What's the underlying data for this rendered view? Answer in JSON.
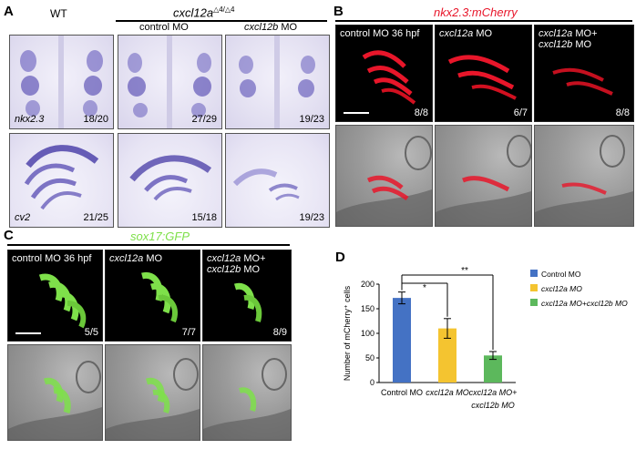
{
  "panelA": {
    "label": "A",
    "wt": "WT",
    "genotype": "cxcl12a",
    "genotype_sup": "△4/△4",
    "col_control": "control MO",
    "col_cxcl12b": "cxcl12b",
    "col_cxcl12b_suffix": " MO",
    "row1_gene": "nkx2.3",
    "row1_counts": [
      "18/20",
      "27/29",
      "19/23"
    ],
    "row2_gene": "cv2",
    "row2_counts": [
      "21/25",
      "15/18",
      "19/23"
    ]
  },
  "panelB": {
    "label": "B",
    "title": "nkx2.3:mCherry",
    "p1": "control MO  36 hpf",
    "p2": "cxcl12a",
    "p2_suffix": " MO",
    "p3a": "cxcl12a",
    "p3a_suffix": " MO+",
    "p3b": "cxcl12b",
    "p3b_suffix": " MO",
    "counts": [
      "8/8",
      "6/7",
      "8/8"
    ]
  },
  "panelC": {
    "label": "C",
    "title": "sox17:GFP",
    "p1": "control MO 36 hpf",
    "p2": "cxcl12a",
    "p2_suffix": " MO",
    "p3a": "cxcl12a",
    "p3a_suffix": " MO+",
    "p3b": "cxcl12b",
    "p3b_suffix": " MO",
    "counts": [
      "5/5",
      "7/7",
      "8/9"
    ]
  },
  "panelD": {
    "label": "D"
  },
  "colors": {
    "blue": "#4472c4",
    "yellow": "#f4c430",
    "green": "#5cb85c",
    "mcherry": "#e8162a",
    "gfp": "#7ee04a",
    "ish": "#4b3fae"
  },
  "chart_data": {
    "type": "bar",
    "categories": [
      "Control MO",
      "cxcl12a MO",
      "cxcl12a MO+ cxcl12b MO"
    ],
    "values": [
      172,
      110,
      55
    ],
    "errors": [
      12,
      20,
      8
    ],
    "colors": [
      "#4472c4",
      "#f4c430",
      "#5cb85c"
    ],
    "legend": [
      "Control MO",
      "cxcl12a MO",
      "cxcl12a MO+cxcl12b MO"
    ],
    "legend_position": "right",
    "ylabel": "Number of mCherry⁺ cells",
    "yticks": [
      0,
      50,
      100,
      150,
      200
    ],
    "ylim": [
      0,
      200
    ],
    "xtick1": "Control MO",
    "xtick2": "cxcl12a MO",
    "xtick3a": "cxcl12a MO+",
    "xtick3b": "cxcl12b MO",
    "sig1": "*",
    "sig2": "**",
    "grid": false
  }
}
